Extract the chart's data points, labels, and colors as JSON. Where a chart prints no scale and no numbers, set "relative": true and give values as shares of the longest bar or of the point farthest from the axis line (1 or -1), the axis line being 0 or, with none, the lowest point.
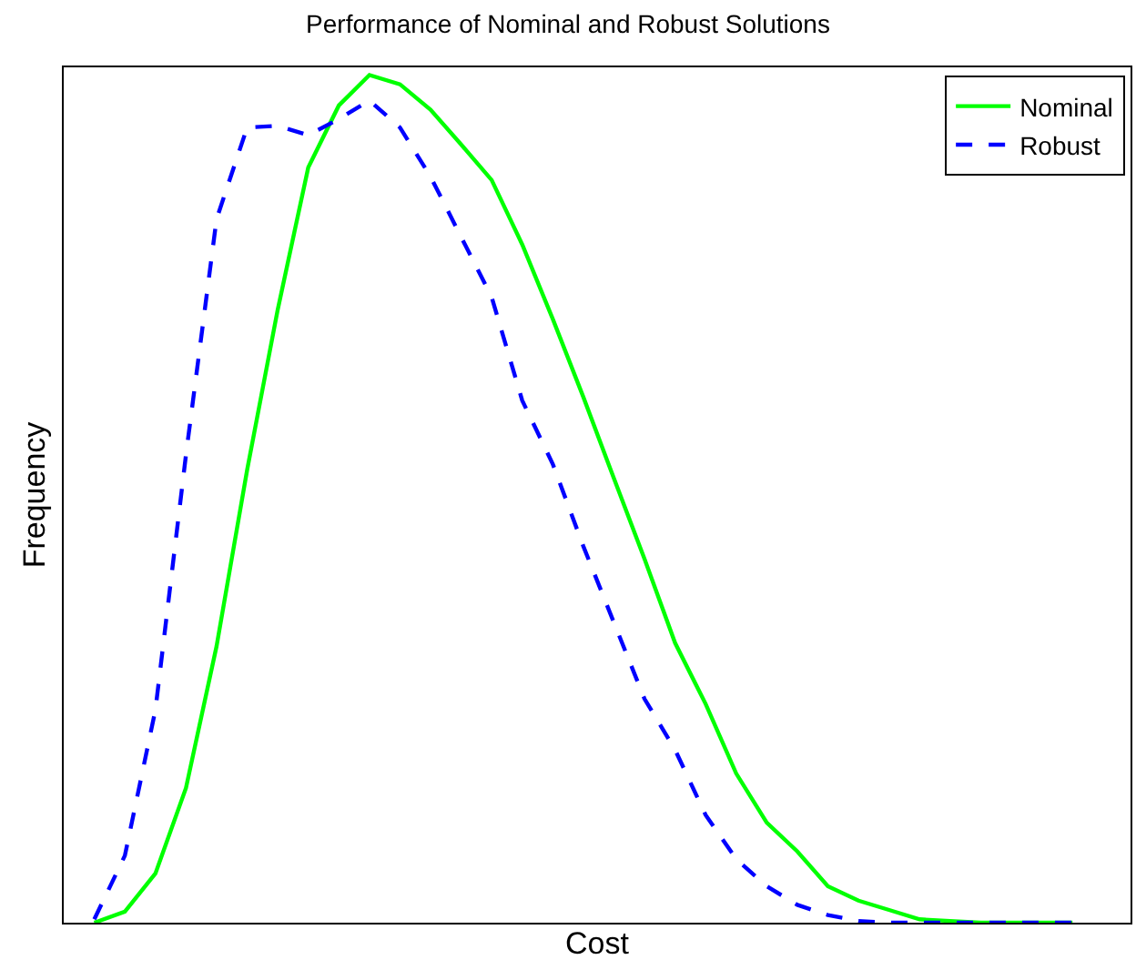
{
  "chart_data": {
    "type": "line",
    "title": "Performance of Nominal and Robust Solutions",
    "xlabel": "Cost",
    "ylabel": "Frequency",
    "relative": true,
    "legend": "top right",
    "marker": "none",
    "categories": [
      null,
      null,
      null,
      null,
      null,
      null,
      null,
      null,
      null,
      null,
      null,
      null,
      null,
      null,
      null,
      null,
      null,
      null,
      null,
      null,
      null,
      null,
      null,
      null,
      null,
      null,
      null,
      null,
      null,
      null,
      null,
      null,
      null
    ],
    "series": [
      {
        "name": "Nominal",
        "color": "#00ff00",
        "line_style": "solid",
        "values": [
          0,
          0.013,
          0.058,
          0.159,
          0.326,
          0.534,
          0.723,
          0.891,
          0.964,
          1,
          0.989,
          0.959,
          0.918,
          0.876,
          0.8,
          0.712,
          0.62,
          0.524,
          0.429,
          0.33,
          0.258,
          0.176,
          0.118,
          0.084,
          0.043,
          0.026,
          0.015,
          0.004,
          0.002,
          0,
          0,
          0,
          0
        ]
      },
      {
        "name": "Robust",
        "color": "#0000ff",
        "line_style": "dashed",
        "values": [
          0.004,
          0.079,
          0.251,
          0.552,
          0.83,
          0.938,
          0.94,
          0.929,
          0.948,
          0.97,
          0.938,
          0.88,
          0.809,
          0.738,
          0.616,
          0.541,
          0.444,
          0.354,
          0.264,
          0.204,
          0.127,
          0.075,
          0.043,
          0.021,
          0.009,
          0.002,
          0,
          0,
          0,
          0,
          0,
          0,
          0
        ]
      }
    ]
  }
}
